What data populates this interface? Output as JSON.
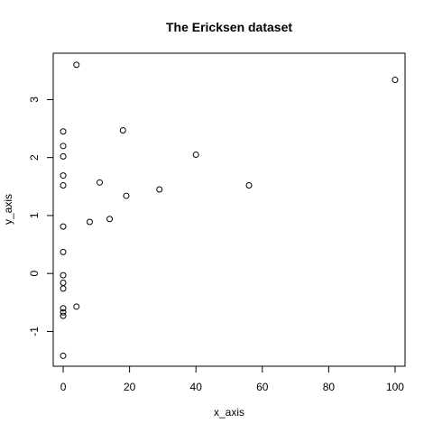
{
  "chart_data": {
    "type": "scatter",
    "title": "The Ericksen dataset",
    "xlabel": "x_axis",
    "ylabel": "y_axis",
    "xlim": [
      -3,
      103
    ],
    "ylim": [
      -1.6,
      3.8
    ],
    "xticks": [
      0,
      20,
      40,
      60,
      80,
      100
    ],
    "xtick_labels": [
      "0",
      "20",
      "40",
      "60",
      "80",
      "100"
    ],
    "yticks": [
      -1,
      0,
      1,
      2,
      3
    ],
    "ytick_labels": [
      "-1",
      "0",
      "1",
      "2",
      "3"
    ],
    "grid": false,
    "x": [
      4,
      100,
      0,
      0,
      0,
      18,
      0,
      40,
      11,
      0,
      56,
      29,
      19,
      14,
      8,
      0,
      0,
      0,
      0,
      0,
      4,
      0,
      0,
      0,
      0
    ],
    "y": [
      3.6,
      3.34,
      2.45,
      2.2,
      2.02,
      2.47,
      1.69,
      2.05,
      1.57,
      1.52,
      1.52,
      1.45,
      1.34,
      0.94,
      0.89,
      0.81,
      0.37,
      -0.03,
      -0.16,
      -0.26,
      -0.57,
      -0.6,
      -0.67,
      -0.73,
      -1.42
    ]
  }
}
